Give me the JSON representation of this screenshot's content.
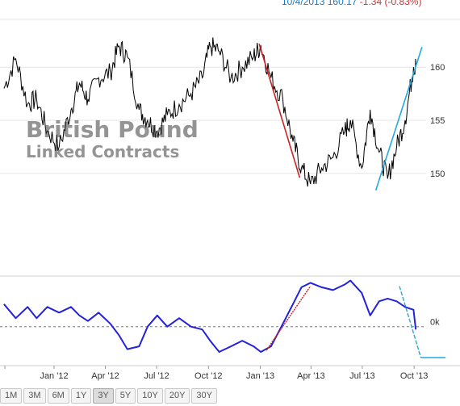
{
  "header": {
    "date": "10/4/2013",
    "price": "160.17",
    "change": "-1.34 (-0.83%)"
  },
  "watermark": {
    "line1": "British Pound",
    "line2": "Linked Contracts"
  },
  "range_buttons": [
    {
      "label": "1M",
      "active": false
    },
    {
      "label": "3M",
      "active": false
    },
    {
      "label": "6M",
      "active": false
    },
    {
      "label": "1Y",
      "active": false
    },
    {
      "label": "3Y",
      "active": true
    },
    {
      "label": "5Y",
      "active": false
    },
    {
      "label": "10Y",
      "active": false
    },
    {
      "label": "20Y",
      "active": false
    },
    {
      "label": "30Y",
      "active": false
    }
  ],
  "colors": {
    "price_line": "#000000",
    "indicator_line": "#2222dd",
    "down_trend": "#cc2222",
    "up_trend": "#22aadd",
    "grid": "#e4e4e4"
  },
  "chart_data": [
    {
      "type": "line",
      "series": [
        {
          "values": [
            {
              "x": "2011-10-04",
              "y": 158.0
            },
            {
              "x": "2011-10-25",
              "y": 160.8
            },
            {
              "x": "2011-11-15",
              "y": 156.5
            },
            {
              "x": "2011-12-01",
              "y": 157.0
            },
            {
              "x": "2011-12-20",
              "y": 154.0
            },
            {
              "x": "2012-01-10",
              "y": 152.5
            },
            {
              "x": "2012-01-31",
              "y": 156.0
            },
            {
              "x": "2012-02-15",
              "y": 158.5
            },
            {
              "x": "2012-03-01",
              "y": 157.0
            },
            {
              "x": "2012-03-20",
              "y": 159.0
            },
            {
              "x": "2012-04-10",
              "y": 159.5
            },
            {
              "x": "2012-04-25",
              "y": 162.0
            },
            {
              "x": "2012-05-10",
              "y": 161.0
            },
            {
              "x": "2012-05-31",
              "y": 156.0
            },
            {
              "x": "2012-06-15",
              "y": 155.0
            },
            {
              "x": "2012-07-02",
              "y": 154.0
            },
            {
              "x": "2012-07-20",
              "y": 155.5
            },
            {
              "x": "2012-08-10",
              "y": 156.5
            },
            {
              "x": "2012-08-31",
              "y": 157.5
            },
            {
              "x": "2012-09-20",
              "y": 159.0
            },
            {
              "x": "2012-10-04",
              "y": 162.0
            },
            {
              "x": "2012-10-20",
              "y": 161.5
            },
            {
              "x": "2012-11-10",
              "y": 159.0
            },
            {
              "x": "2012-11-30",
              "y": 160.0
            },
            {
              "x": "2012-12-20",
              "y": 161.0
            },
            {
              "x": "2013-01-02",
              "y": 162.0
            },
            {
              "x": "2013-01-20",
              "y": 159.0
            },
            {
              "x": "2013-02-10",
              "y": 157.0
            },
            {
              "x": "2013-02-28",
              "y": 153.0
            },
            {
              "x": "2013-03-15",
              "y": 150.5
            },
            {
              "x": "2013-03-31",
              "y": 149.0
            },
            {
              "x": "2013-04-20",
              "y": 150.5
            },
            {
              "x": "2013-05-10",
              "y": 151.5
            },
            {
              "x": "2013-05-31",
              "y": 154.0
            },
            {
              "x": "2013-06-10",
              "y": 155.0
            },
            {
              "x": "2013-06-30",
              "y": 150.5
            },
            {
              "x": "2013-07-15",
              "y": 156.0
            },
            {
              "x": "2013-07-31",
              "y": 152.0
            },
            {
              "x": "2013-08-15",
              "y": 149.5
            },
            {
              "x": "2013-08-31",
              "y": 152.5
            },
            {
              "x": "2013-09-15",
              "y": 155.0
            },
            {
              "x": "2013-09-30",
              "y": 160.0
            },
            {
              "x": "2013-10-04",
              "y": 160.17
            }
          ]
        }
      ],
      "xlabels": [
        "Jan '12",
        "Apr '12",
        "Jul '12",
        "Oct '12",
        "Jan '13",
        "Apr '13",
        "Jul '13",
        "Oct '13"
      ],
      "xticks": [
        "2012-01-01",
        "2012-04-01",
        "2012-07-01",
        "2012-10-01",
        "2013-01-01",
        "2013-04-01",
        "2013-07-01",
        "2013-10-01"
      ],
      "ylabels": [
        "150",
        "155",
        "160"
      ],
      "yticks": [
        150,
        155,
        160
      ],
      "xlim": [
        "2011-09-27",
        "2013-10-18"
      ],
      "ylim": [
        141.1,
        164.5
      ],
      "grid": true,
      "annotations": [
        {
          "type": "trendline",
          "color": "#cc2222",
          "from": {
            "x": "2012-12-30",
            "y": 162.2
          },
          "to": {
            "x": "2013-03-12",
            "y": 149.6
          }
        },
        {
          "type": "trendline",
          "color": "#22aadd",
          "from": {
            "x": "2013-07-25",
            "y": 148.4
          },
          "to": {
            "x": "2013-10-15",
            "y": 161.9
          }
        }
      ]
    },
    {
      "type": "line",
      "series": [
        {
          "values": [
            {
              "x": "2011-10-04",
              "y": 0.4
            },
            {
              "x": "2011-10-25",
              "y": 0.15
            },
            {
              "x": "2011-11-15",
              "y": 0.35
            },
            {
              "x": "2011-12-01",
              "y": 0.15
            },
            {
              "x": "2011-12-20",
              "y": 0.35
            },
            {
              "x": "2012-01-10",
              "y": 0.25
            },
            {
              "x": "2012-01-31",
              "y": 0.35
            },
            {
              "x": "2012-02-15",
              "y": 0.2
            },
            {
              "x": "2012-03-01",
              "y": 0.1
            },
            {
              "x": "2012-03-20",
              "y": 0.25
            },
            {
              "x": "2012-04-10",
              "y": 0.05
            },
            {
              "x": "2012-04-25",
              "y": -0.15
            },
            {
              "x": "2012-05-10",
              "y": -0.4
            },
            {
              "x": "2012-05-31",
              "y": -0.35
            },
            {
              "x": "2012-06-15",
              "y": 0.0
            },
            {
              "x": "2012-07-02",
              "y": 0.2
            },
            {
              "x": "2012-07-20",
              "y": 0.0
            },
            {
              "x": "2012-08-10",
              "y": 0.15
            },
            {
              "x": "2012-08-31",
              "y": 0.0
            },
            {
              "x": "2012-09-20",
              "y": -0.05
            },
            {
              "x": "2012-10-04",
              "y": -0.25
            },
            {
              "x": "2012-10-20",
              "y": -0.45
            },
            {
              "x": "2012-11-10",
              "y": -0.35
            },
            {
              "x": "2012-11-30",
              "y": -0.25
            },
            {
              "x": "2012-12-20",
              "y": -0.35
            },
            {
              "x": "2013-01-02",
              "y": -0.45
            },
            {
              "x": "2013-01-20",
              "y": -0.35
            },
            {
              "x": "2013-02-10",
              "y": 0.05
            },
            {
              "x": "2013-02-28",
              "y": 0.4
            },
            {
              "x": "2013-03-15",
              "y": 0.7
            },
            {
              "x": "2013-03-31",
              "y": 0.78
            },
            {
              "x": "2013-04-20",
              "y": 0.7
            },
            {
              "x": "2013-05-10",
              "y": 0.65
            },
            {
              "x": "2013-05-31",
              "y": 0.75
            },
            {
              "x": "2013-06-10",
              "y": 0.82
            },
            {
              "x": "2013-06-30",
              "y": 0.6
            },
            {
              "x": "2013-07-15",
              "y": 0.2
            },
            {
              "x": "2013-07-31",
              "y": 0.45
            },
            {
              "x": "2013-08-15",
              "y": 0.5
            },
            {
              "x": "2013-08-31",
              "y": 0.45
            },
            {
              "x": "2013-09-15",
              "y": 0.35
            },
            {
              "x": "2013-09-30",
              "y": 0.3
            },
            {
              "x": "2013-10-04",
              "y": -0.05
            }
          ]
        }
      ],
      "ylabels": [
        "0k"
      ],
      "yticks": [
        0
      ],
      "ylim": [
        -0.55,
        0.9
      ],
      "grid": true,
      "annotations": [
        {
          "type": "trendline",
          "color": "#cc2222",
          "from": {
            "x": "2013-01-12",
            "y": -0.42
          },
          "to": {
            "x": "2013-03-31",
            "y": 0.72
          }
        },
        {
          "type": "trendline",
          "color": "#22aadd",
          "from": {
            "x": "2013-09-05",
            "y": 0.72
          },
          "to": {
            "x": "2013-10-13",
            "y": -0.55
          }
        },
        {
          "type": "hline",
          "color": "#22aadd",
          "y": -0.55
        }
      ]
    }
  ]
}
